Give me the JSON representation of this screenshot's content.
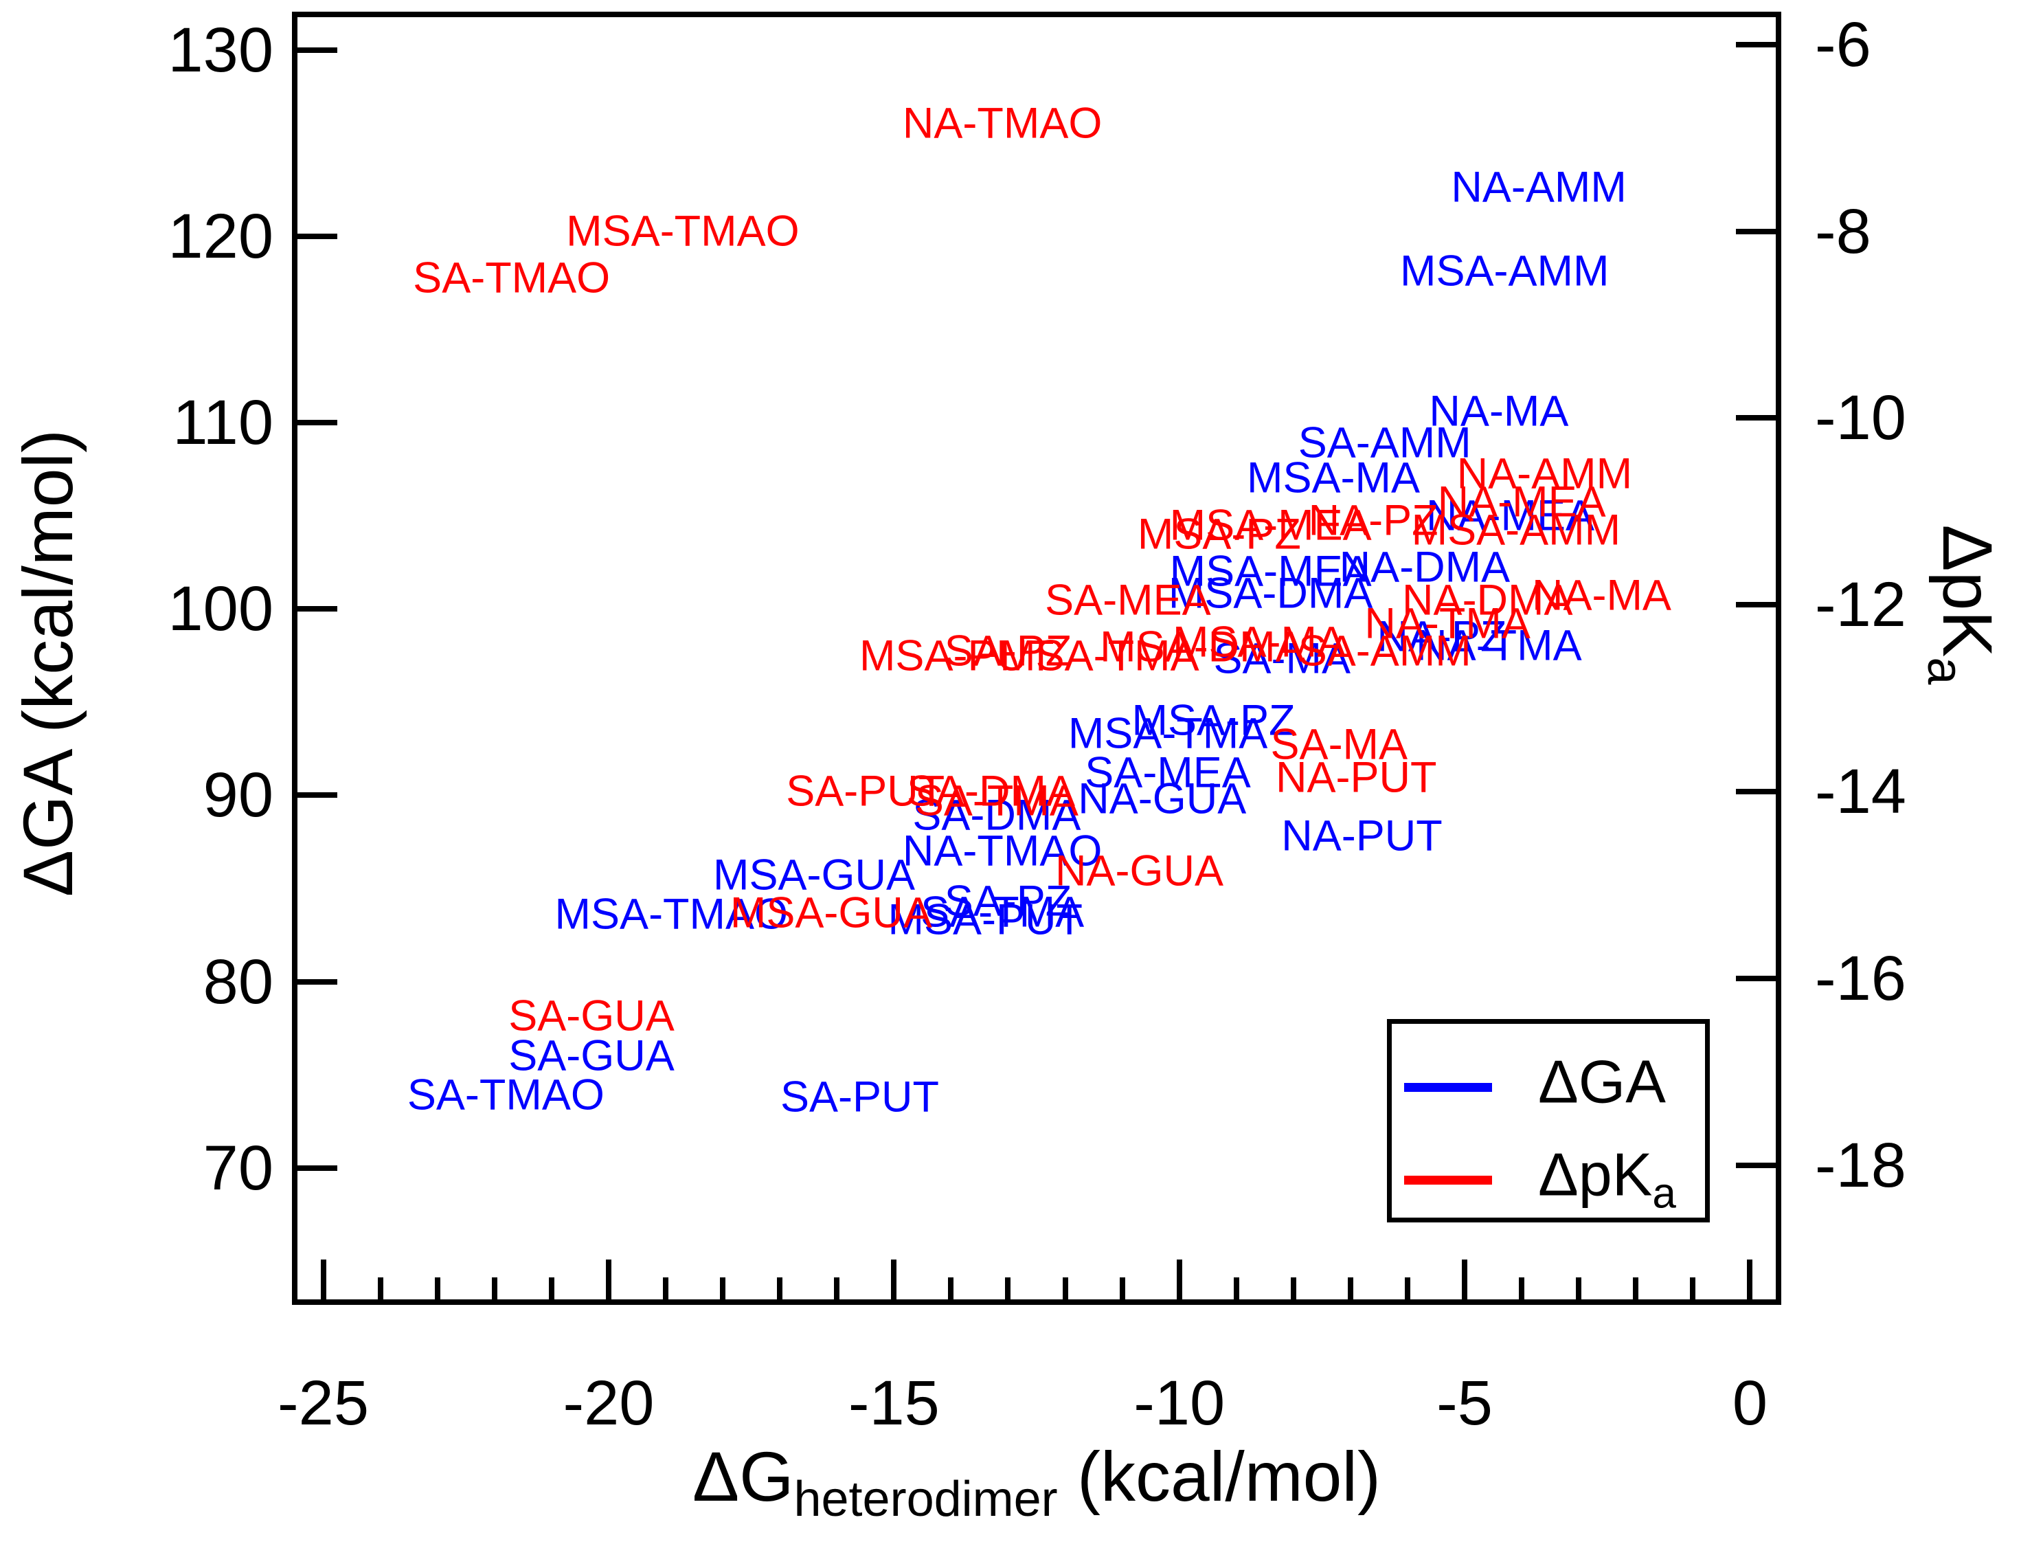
{
  "colors": {
    "ga_series": "#0000FF",
    "pka_series": "#FF0000",
    "axis": "#000000",
    "background": "#FFFFFF"
  },
  "legend": {
    "entries": [
      {
        "label_main": "ΔGA",
        "label_sub": "",
        "color": "#0000FF"
      },
      {
        "label_main": "ΔpK",
        "label_sub": "a",
        "color": "#FF0000"
      }
    ]
  },
  "chart_data": {
    "type": "scatter",
    "marker_style": "text-label",
    "title": "",
    "xlabel_main": "ΔG",
    "xlabel_sub": "heterodimer",
    "xlabel_suffix": " (kcal/mol)",
    "ylabel_left": "ΔGA (kcal/mol)",
    "ylabel_right_main": "ΔpK",
    "ylabel_right_sub": "a",
    "grid": false,
    "legend_position": "lower right",
    "x_axis": {
      "range": [
        -25.5,
        0.5
      ],
      "major_ticks": [
        -25,
        -20,
        -15,
        -10,
        -5,
        0
      ],
      "major_tick_labels": [
        "-25",
        "-20",
        "-15",
        "-10",
        "-5",
        "0"
      ],
      "minor_tick_step": 1
    },
    "y_left": {
      "range": [
        62.8,
        131.9
      ],
      "major_ticks": [
        70,
        80,
        90,
        100,
        110,
        120,
        130
      ],
      "major_tick_labels": [
        "70",
        "80",
        "90",
        "100",
        "110",
        "120",
        "130"
      ]
    },
    "y_right": {
      "range": [
        -19.46,
        -5.68
      ],
      "major_ticks": [
        -18,
        -16,
        -14,
        -12,
        -10,
        -8,
        -6
      ],
      "major_tick_labels": [
        "-18",
        "-16",
        "-14",
        "-12",
        "-10",
        "-8",
        "-6"
      ]
    },
    "series": [
      {
        "name": "ΔGA",
        "axis": "left",
        "color": "#0000FF",
        "points": [
          {
            "label": "NA-AMM",
            "x": -3.7,
            "y": 122.6
          },
          {
            "label": "MSA-AMM",
            "x": -4.3,
            "y": 118.1
          },
          {
            "label": "NA-MA",
            "x": -4.4,
            "y": 110.6
          },
          {
            "label": "SA-AMM",
            "x": -6.4,
            "y": 108.9
          },
          {
            "label": "MSA-MA",
            "x": -7.3,
            "y": 107.0
          },
          {
            "label": "NA-MEA",
            "x": -4.2,
            "y": 105.0
          },
          {
            "label": "NA-DMA",
            "x": -5.7,
            "y": 102.2
          },
          {
            "label": "MSA-MEA",
            "x": -8.4,
            "y": 102.0
          },
          {
            "label": "MSA-DMA",
            "x": -8.4,
            "y": 100.8
          },
          {
            "label": "NA-PZ",
            "x": -5.4,
            "y": 98.5
          },
          {
            "label": "NA-TMA",
            "x": -4.4,
            "y": 98.0
          },
          {
            "label": "SA-MA",
            "x": -8.2,
            "y": 97.3
          },
          {
            "label": "MSA-PZ",
            "x": -9.4,
            "y": 94.0
          },
          {
            "label": "MSA-TMA",
            "x": -10.2,
            "y": 93.3
          },
          {
            "label": "SA-MEA",
            "x": -10.2,
            "y": 91.2
          },
          {
            "label": "NA-GUA",
            "x": -10.3,
            "y": 89.8
          },
          {
            "label": "SA-DMA",
            "x": -13.2,
            "y": 88.9
          },
          {
            "label": "NA-PUT",
            "x": -6.8,
            "y": 87.8
          },
          {
            "label": "NA-TMAO",
            "x": -13.1,
            "y": 87.0
          },
          {
            "label": "MSA-GUA",
            "x": -16.4,
            "y": 85.7
          },
          {
            "label": "SA-PZ",
            "x": -13.0,
            "y": 84.3
          },
          {
            "label": "SA-TMA",
            "x": -13.1,
            "y": 83.7
          },
          {
            "label": "MSA-TMAO",
            "x": -18.9,
            "y": 83.6
          },
          {
            "label": "MSA-PUT",
            "x": -13.4,
            "y": 83.3
          },
          {
            "label": "SA-GUA",
            "x": -20.3,
            "y": 76.0
          },
          {
            "label": "SA-TMAO",
            "x": -21.8,
            "y": 73.9
          },
          {
            "label": "SA-PUT",
            "x": -15.6,
            "y": 73.8
          }
        ]
      },
      {
        "name": "ΔpKa",
        "axis": "right",
        "color": "#FF0000",
        "points": [
          {
            "label": "NA-TMAO",
            "x": -13.1,
            "y": -6.85
          },
          {
            "label": "MSA-TMAO",
            "x": -18.7,
            "y": -8.0
          },
          {
            "label": "SA-TMAO",
            "x": -21.7,
            "y": -8.5
          },
          {
            "label": "NA-AMM",
            "x": -3.6,
            "y": -10.6
          },
          {
            "label": "NA-MEA",
            "x": -4.0,
            "y": -10.9
          },
          {
            "label": "NA-PZ",
            "x": -6.6,
            "y": -11.1
          },
          {
            "label": "MSA-MEA",
            "x": -8.4,
            "y": -11.15
          },
          {
            "label": "MSA-AMM",
            "x": -4.1,
            "y": -11.2
          },
          {
            "label": "MSA-PZ",
            "x": -9.3,
            "y": -11.25
          },
          {
            "label": "NA-MA",
            "x": -2.6,
            "y": -11.9
          },
          {
            "label": "SA-MEA",
            "x": -10.9,
            "y": -11.95
          },
          {
            "label": "NA-DMA",
            "x": -4.6,
            "y": -11.95
          },
          {
            "label": "NA-TMA",
            "x": -5.3,
            "y": -12.2
          },
          {
            "label": "MSA-MA",
            "x": -8.6,
            "y": -12.4
          },
          {
            "label": "MSA-DMA",
            "x": -9.6,
            "y": -12.45
          },
          {
            "label": "SA-AMM",
            "x": -6.4,
            "y": -12.5
          },
          {
            "label": "SA-PZ",
            "x": -13.0,
            "y": -12.5
          },
          {
            "label": "MSA-PUT",
            "x": -13.9,
            "y": -12.55
          },
          {
            "label": "MSA-TMA",
            "x": -11.4,
            "y": -12.55
          },
          {
            "label": "SA-MA",
            "x": -7.2,
            "y": -13.5
          },
          {
            "label": "NA-PUT",
            "x": -6.9,
            "y": -13.85
          },
          {
            "label": "SA-DMA",
            "x": -13.3,
            "y": -14.0
          },
          {
            "label": "SA-PUT",
            "x": -15.5,
            "y": -14.0
          },
          {
            "label": "SA-TMA",
            "x": -13.2,
            "y": -14.1
          },
          {
            "label": "NA-GUA",
            "x": -10.7,
            "y": -14.85
          },
          {
            "label": "MSA-GUA",
            "x": -16.1,
            "y": -15.3
          },
          {
            "label": "SA-GUA",
            "x": -20.3,
            "y": -16.4
          }
        ]
      }
    ]
  }
}
